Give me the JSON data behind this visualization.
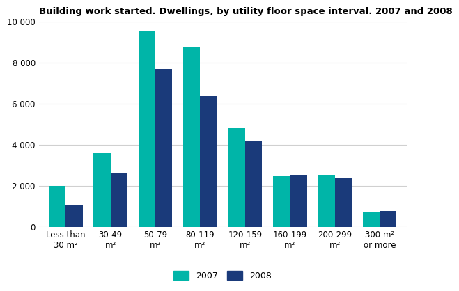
{
  "title": "Building work started. Dwellings, by utility floor space interval. 2007 and 2008",
  "categories": [
    "Less than\n30 m²",
    "30-49\nm²",
    "50-79\nm²",
    "80-119\nm²",
    "120-159\nm²",
    "160-199\nm²",
    "200-299\nm²",
    "300 m²\nor more"
  ],
  "values_2007": [
    2000,
    3580,
    9500,
    8750,
    4800,
    2470,
    2530,
    720
  ],
  "values_2008": [
    1050,
    2620,
    7700,
    6380,
    4150,
    2520,
    2400,
    770
  ],
  "color_2007": "#00B5A8",
  "color_2008": "#1A3A7A",
  "ylim": [
    0,
    10000
  ],
  "yticks": [
    0,
    2000,
    4000,
    6000,
    8000,
    10000
  ],
  "ytick_labels": [
    "0",
    "2 000",
    "4 000",
    "6 000",
    "8 000",
    "10 000"
  ],
  "legend_2007": "2007",
  "legend_2008": "2008",
  "bar_width": 0.38,
  "background_color": "#ffffff",
  "grid_color": "#d0d0d0",
  "title_fontsize": 9.5,
  "axis_fontsize": 8.5,
  "legend_fontsize": 9
}
